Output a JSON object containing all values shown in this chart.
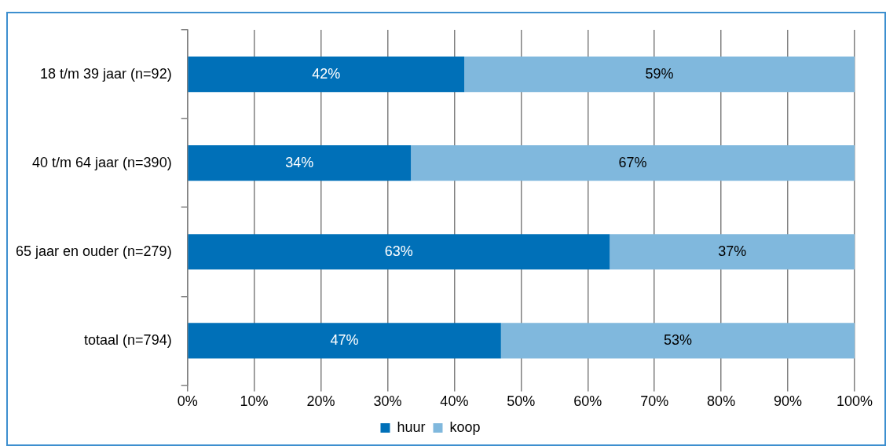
{
  "chart_data": {
    "type": "bar",
    "orientation": "horizontal",
    "stacked": true,
    "categories": [
      "18 t/m 39 jaar (n=92)",
      "40 t/m 64 jaar (n=390)",
      "65 jaar en ouder (n=279)",
      "totaal (n=794)"
    ],
    "series": [
      {
        "name": "huur",
        "color": "#0070b8",
        "values": [
          41.5,
          33.5,
          63.3,
          47
        ],
        "value_labels": [
          "42%",
          "34%",
          "63%",
          "47%"
        ]
      },
      {
        "name": "koop",
        "color": "#80b8dd",
        "values": [
          58.5,
          66.5,
          36.7,
          53
        ],
        "value_labels": [
          "59%",
          "67%",
          "37%",
          "53%"
        ]
      }
    ],
    "xlim": [
      0,
      100
    ],
    "xticks": [
      {
        "value": 0,
        "label": "0%"
      },
      {
        "value": 10,
        "label": "10%"
      },
      {
        "value": 20,
        "label": "20%"
      },
      {
        "value": 30,
        "label": "30%"
      },
      {
        "value": 40,
        "label": "40%"
      },
      {
        "value": 50,
        "label": "50%"
      },
      {
        "value": 60,
        "label": "60%"
      },
      {
        "value": 70,
        "label": "70%"
      },
      {
        "value": 80,
        "label": "80%"
      },
      {
        "value": 90,
        "label": "90%"
      },
      {
        "value": 100,
        "label": "100%"
      }
    ],
    "grid": "x",
    "legend": "bottom"
  }
}
